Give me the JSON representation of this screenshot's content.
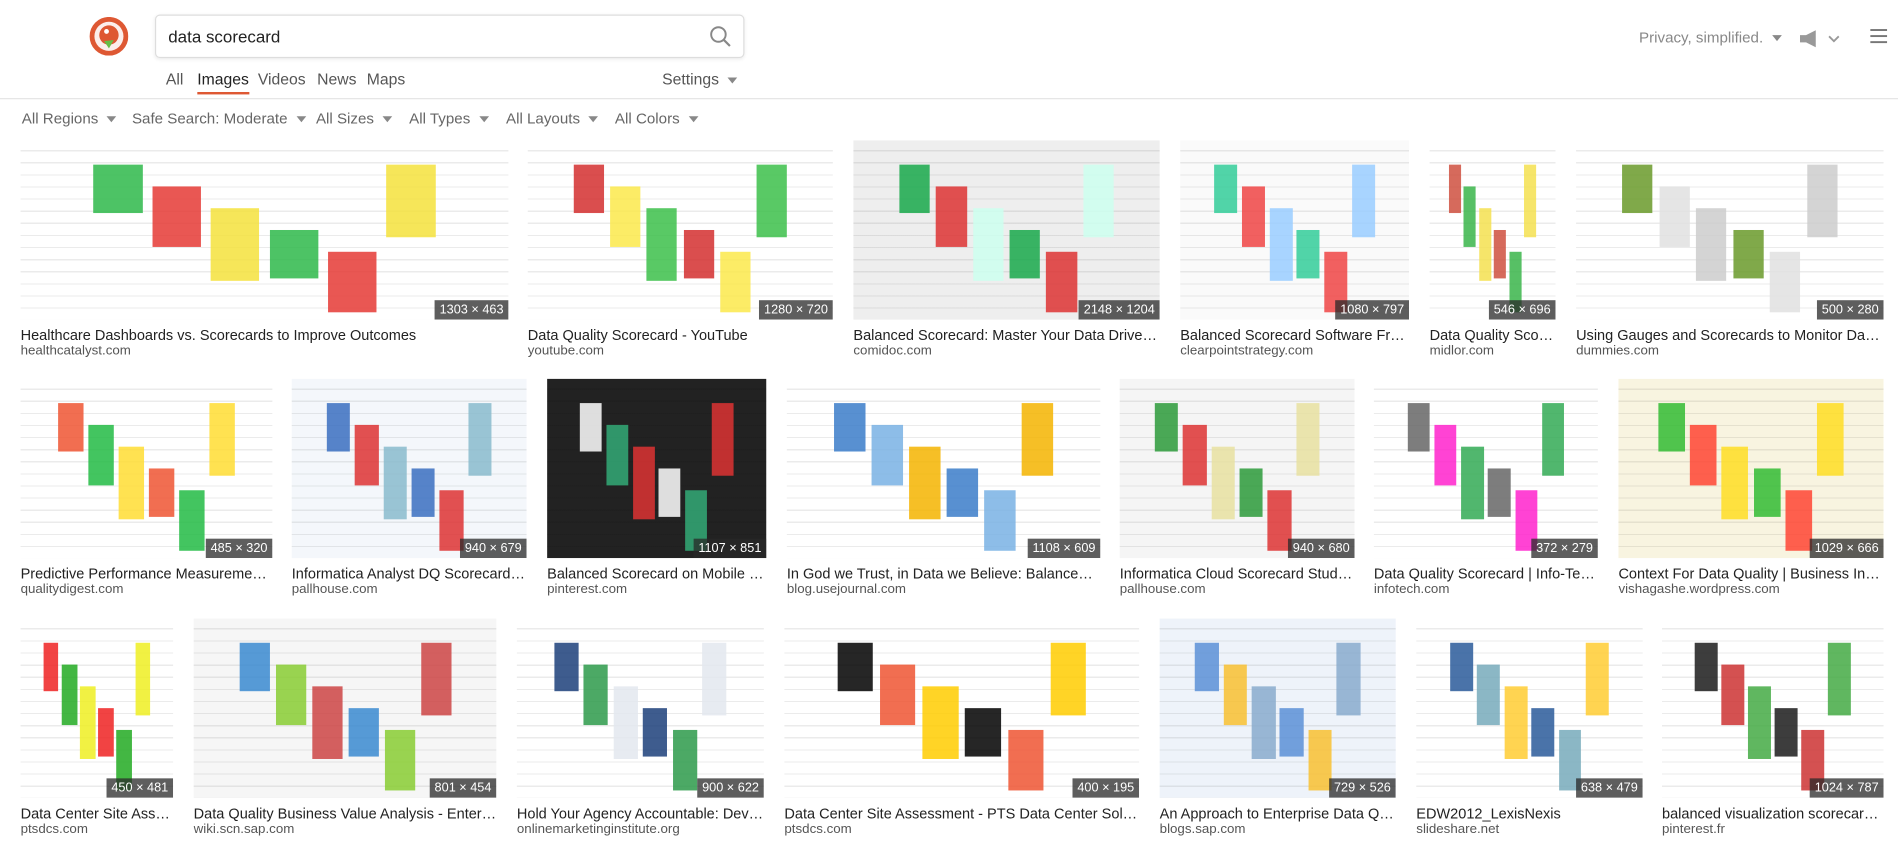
{
  "header": {
    "query": "data scorecard",
    "tabs": [
      "All",
      "Images",
      "Videos",
      "News",
      "Maps"
    ],
    "active_tab": "Images",
    "settings": "Settings",
    "tagline": "Privacy, simplified."
  },
  "filters": [
    "All Regions",
    "Safe Search: Moderate",
    "All Sizes",
    "All Types",
    "All Layouts",
    "All Colors"
  ],
  "results": [
    [
      {
        "title": "Healthcare Dashboards vs. Scorecards to Improve Outcomes",
        "source": "healthcatalyst.com",
        "size": "1303 × 463"
      },
      {
        "title": "Data Quality Scorecard - YouTube",
        "source": "youtube.com",
        "size": "1280 × 720"
      },
      {
        "title": "Balanced Scorecard: Master Your Data Driven Perf...",
        "source": "comidoc.com",
        "size": "2148 × 1204"
      },
      {
        "title": "Balanced Scorecard Software From ...",
        "source": "clearpointstrategy.com",
        "size": "1080 × 797"
      },
      {
        "title": "Data Quality Scorec...",
        "source": "midlor.com",
        "size": "546 × 696"
      },
      {
        "title": "Using Gauges and Scorecards to Monitor Data - d...",
        "source": "dummies.com",
        "size": "500 × 280"
      }
    ],
    [
      {
        "title": "Predictive Performance Measurements | ...",
        "source": "qualitydigest.com",
        "size": "485 × 320"
      },
      {
        "title": "Informatica Analyst DQ Scorecard | Mi...",
        "source": "pallhouse.com",
        "size": "940 × 679"
      },
      {
        "title": "Balanced Scorecard on Mobile – Da...",
        "source": "pinterest.com",
        "size": "1107 × 851"
      },
      {
        "title": "In God we Trust, in Data we Believe: Balanced Scor...",
        "source": "blog.usejournal.com",
        "size": "1108 × 609"
      },
      {
        "title": "Informatica Cloud Scorecard Studies | ...",
        "source": "pallhouse.com",
        "size": "940 × 680"
      },
      {
        "title": "Data Quality Scorecard | Info-Tech R...",
        "source": "infotech.com",
        "size": "372 × 279"
      },
      {
        "title": "Context For Data Quality | Business Intellig...",
        "source": "vishagashe.wordpress.com",
        "size": "1029 × 666"
      }
    ],
    [
      {
        "title": "Data Center Site Assess...",
        "source": "ptsdcs.com",
        "size": "450 × 481"
      },
      {
        "title": "Data Quality Business Value Analysis - Enterprise ...",
        "source": "wiki.scn.sap.com",
        "size": "801 × 454"
      },
      {
        "title": "Hold Your Agency Accountable: Develo...",
        "source": "onlinemarketinginstitute.org",
        "size": "900 × 622"
      },
      {
        "title": "Data Center Site Assessment - PTS Data Center Solutions",
        "source": "ptsdcs.com",
        "size": "400 × 195"
      },
      {
        "title": "An Approach to Enterprise Data Qualit...",
        "source": "blogs.sap.com",
        "size": "729 × 526"
      },
      {
        "title": "EDW2012_LexisNexis",
        "source": "slideshare.net",
        "size": "638 × 479"
      },
      {
        "title": "balanced visualization scorecard - G...",
        "source": "pinterest.fr",
        "size": "1024 × 787"
      }
    ]
  ]
}
